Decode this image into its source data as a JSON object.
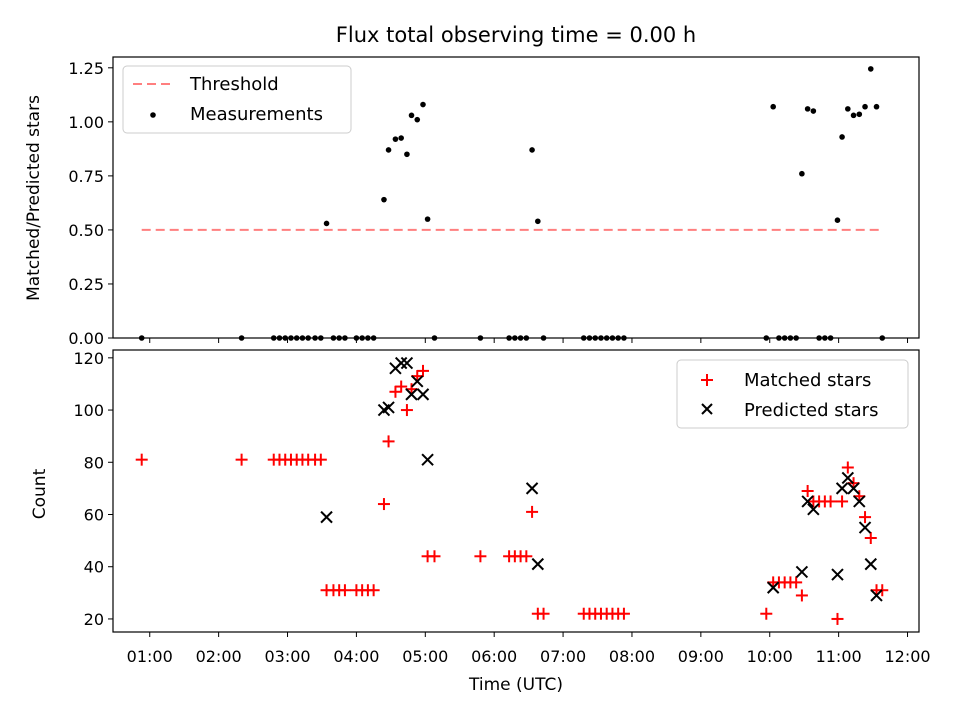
{
  "chart_data": [
    {
      "type": "scatter",
      "title": "Flux total observing time = 0.00 h",
      "xlabel": "",
      "ylabel": "Matched/Predicted stars",
      "xlim": [
        "00:28",
        "12:10"
      ],
      "ylim": [
        0,
        1.3
      ],
      "xticks": [
        "01:00",
        "02:00",
        "03:00",
        "04:00",
        "05:00",
        "06:00",
        "07:00",
        "08:00",
        "09:00",
        "10:00",
        "11:00",
        "12:00"
      ],
      "yticks": [
        "0.00",
        "0.25",
        "0.50",
        "0.75",
        "1.00",
        "1.25"
      ],
      "grid": false,
      "legend_position": "top-left",
      "colors": {
        "threshold": "#ff7f7f",
        "measurements": "#000000"
      },
      "series": [
        {
          "name": "Threshold",
          "style": "dashed-line",
          "points": [
            [
              "00:53",
              0.5
            ],
            [
              "11:38",
              0.5
            ]
          ]
        },
        {
          "name": "Measurements",
          "style": "dot",
          "points": [
            [
              "00:53",
              0.0
            ],
            [
              "02:20",
              0.0
            ],
            [
              "02:48",
              0.0
            ],
            [
              "02:53",
              0.0
            ],
            [
              "02:58",
              0.0
            ],
            [
              "03:03",
              0.0
            ],
            [
              "03:08",
              0.0
            ],
            [
              "03:13",
              0.0
            ],
            [
              "03:18",
              0.0
            ],
            [
              "03:24",
              0.0
            ],
            [
              "03:29",
              0.0
            ],
            [
              "03:34",
              0.53
            ],
            [
              "03:40",
              0.0
            ],
            [
              "03:45",
              0.0
            ],
            [
              "03:50",
              0.0
            ],
            [
              "04:00",
              0.0
            ],
            [
              "04:05",
              0.0
            ],
            [
              "04:10",
              0.0
            ],
            [
              "04:15",
              0.0
            ],
            [
              "04:24",
              0.64
            ],
            [
              "04:28",
              0.87
            ],
            [
              "04:34",
              0.92
            ],
            [
              "04:39",
              0.925
            ],
            [
              "04:44",
              0.85
            ],
            [
              "04:48",
              1.03
            ],
            [
              "04:53",
              1.01
            ],
            [
              "04:58",
              1.08
            ],
            [
              "05:02",
              0.55
            ],
            [
              "05:08",
              0.0
            ],
            [
              "05:48",
              0.0
            ],
            [
              "06:13",
              0.0
            ],
            [
              "06:18",
              0.0
            ],
            [
              "06:23",
              0.0
            ],
            [
              "06:28",
              0.0
            ],
            [
              "06:33",
              0.87
            ],
            [
              "06:38",
              0.54
            ],
            [
              "06:43",
              0.0
            ],
            [
              "07:18",
              0.0
            ],
            [
              "07:23",
              0.0
            ],
            [
              "07:28",
              0.0
            ],
            [
              "07:33",
              0.0
            ],
            [
              "07:38",
              0.0
            ],
            [
              "07:43",
              0.0
            ],
            [
              "07:48",
              0.0
            ],
            [
              "07:53",
              0.0
            ],
            [
              "09:57",
              0.0
            ],
            [
              "10:03",
              1.07
            ],
            [
              "10:08",
              0.0
            ],
            [
              "10:13",
              0.0
            ],
            [
              "10:18",
              0.0
            ],
            [
              "10:23",
              0.0
            ],
            [
              "10:28",
              0.76
            ],
            [
              "10:33",
              1.06
            ],
            [
              "10:38",
              1.05
            ],
            [
              "10:43",
              0.0
            ],
            [
              "10:48",
              0.0
            ],
            [
              "10:53",
              0.0
            ],
            [
              "10:59",
              0.545
            ],
            [
              "11:03",
              0.93
            ],
            [
              "11:08",
              1.06
            ],
            [
              "11:13",
              1.03
            ],
            [
              "11:18",
              1.035
            ],
            [
              "11:23",
              1.07
            ],
            [
              "11:28",
              1.245
            ],
            [
              "11:33",
              1.07
            ],
            [
              "11:38",
              0.0
            ]
          ]
        }
      ]
    },
    {
      "type": "scatter",
      "title": "",
      "xlabel": "Time (UTC)",
      "ylabel": "Count",
      "xlim": [
        "00:28",
        "12:10"
      ],
      "ylim": [
        15,
        123
      ],
      "xticks": [
        "01:00",
        "02:00",
        "03:00",
        "04:00",
        "05:00",
        "06:00",
        "07:00",
        "08:00",
        "09:00",
        "10:00",
        "11:00",
        "12:00"
      ],
      "yticks": [
        "20",
        "40",
        "60",
        "80",
        "100",
        "120"
      ],
      "grid": false,
      "legend_position": "top-right",
      "colors": {
        "matched": "#ff0000",
        "predicted": "#000000"
      },
      "series": [
        {
          "name": "Matched stars",
          "marker": "+",
          "points": [
            [
              "00:53",
              81
            ],
            [
              "02:20",
              81
            ],
            [
              "02:48",
              81
            ],
            [
              "02:53",
              81
            ],
            [
              "02:58",
              81
            ],
            [
              "03:03",
              81
            ],
            [
              "03:08",
              81
            ],
            [
              "03:13",
              81
            ],
            [
              "03:18",
              81
            ],
            [
              "03:24",
              81
            ],
            [
              "03:29",
              81
            ],
            [
              "03:34",
              31
            ],
            [
              "03:40",
              31
            ],
            [
              "03:45",
              31
            ],
            [
              "03:50",
              31
            ],
            [
              "04:00",
              31
            ],
            [
              "04:05",
              31
            ],
            [
              "04:10",
              31
            ],
            [
              "04:15",
              31
            ],
            [
              "04:24",
              64
            ],
            [
              "04:28",
              88
            ],
            [
              "04:34",
              107
            ],
            [
              "04:39",
              109
            ],
            [
              "04:44",
              100
            ],
            [
              "04:48",
              108
            ],
            [
              "04:53",
              113
            ],
            [
              "04:58",
              115
            ],
            [
              "05:02",
              44
            ],
            [
              "05:08",
              44
            ],
            [
              "05:48",
              44
            ],
            [
              "06:13",
              44
            ],
            [
              "06:18",
              44
            ],
            [
              "06:23",
              44
            ],
            [
              "06:28",
              44
            ],
            [
              "06:33",
              61
            ],
            [
              "06:38",
              22
            ],
            [
              "06:43",
              22
            ],
            [
              "07:18",
              22
            ],
            [
              "07:23",
              22
            ],
            [
              "07:28",
              22
            ],
            [
              "07:33",
              22
            ],
            [
              "07:38",
              22
            ],
            [
              "07:43",
              22
            ],
            [
              "07:48",
              22
            ],
            [
              "07:53",
              22
            ],
            [
              "09:57",
              22
            ],
            [
              "10:03",
              34
            ],
            [
              "10:08",
              34
            ],
            [
              "10:13",
              34
            ],
            [
              "10:18",
              34
            ],
            [
              "10:23",
              34
            ],
            [
              "10:28",
              29
            ],
            [
              "10:33",
              69
            ],
            [
              "10:38",
              65
            ],
            [
              "10:43",
              65
            ],
            [
              "10:48",
              65
            ],
            [
              "10:53",
              65
            ],
            [
              "10:59",
              20
            ],
            [
              "11:03",
              65
            ],
            [
              "11:08",
              78
            ],
            [
              "11:13",
              72
            ],
            [
              "11:18",
              67
            ],
            [
              "11:23",
              59
            ],
            [
              "11:28",
              51
            ],
            [
              "11:33",
              31
            ],
            [
              "11:38",
              31
            ]
          ]
        },
        {
          "name": "Predicted stars",
          "marker": "x",
          "points": [
            [
              "03:34",
              59
            ],
            [
              "04:24",
              100
            ],
            [
              "04:28",
              101
            ],
            [
              "04:34",
              116
            ],
            [
              "04:39",
              118
            ],
            [
              "04:44",
              118
            ],
            [
              "04:48",
              106
            ],
            [
              "04:53",
              111
            ],
            [
              "04:58",
              106
            ],
            [
              "05:02",
              81
            ],
            [
              "06:33",
              70
            ],
            [
              "06:38",
              41
            ],
            [
              "10:03",
              32
            ],
            [
              "10:28",
              38
            ],
            [
              "10:33",
              65
            ],
            [
              "10:38",
              62
            ],
            [
              "10:59",
              37
            ],
            [
              "11:03",
              70
            ],
            [
              "11:08",
              74
            ],
            [
              "11:13",
              70
            ],
            [
              "11:18",
              65
            ],
            [
              "11:23",
              55
            ],
            [
              "11:28",
              41
            ],
            [
              "11:33",
              29
            ]
          ]
        }
      ]
    }
  ]
}
